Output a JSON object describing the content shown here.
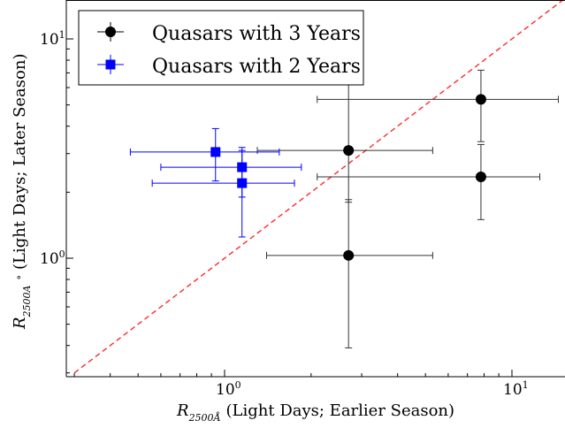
{
  "chart_data": {
    "type": "scatter",
    "xscale": "log",
    "yscale": "log",
    "xlim": [
      0.3,
      15
    ],
    "ylim": [
      0.3,
      15
    ],
    "grid": false,
    "legend_position": "top-left",
    "xlabel": {
      "symbol": "R",
      "subscript": "2500",
      "subscript_unit": "Å",
      "text": "(Light Days; Earlier Season)"
    },
    "ylabel": {
      "symbol": "R",
      "subscript": "2500",
      "subscript_unit": "A",
      "text": "(Light Days; Later Season)"
    },
    "x_ticks": [
      {
        "value": 1,
        "base": "10",
        "exp": "0"
      },
      {
        "value": 10,
        "base": "10",
        "exp": "1"
      }
    ],
    "y_ticks": [
      {
        "value": 1,
        "base": "10",
        "exp": "0"
      },
      {
        "value": 10,
        "base": "10",
        "exp": "1"
      }
    ],
    "reference_line": {
      "kind": "one-to-one",
      "color": "#ff2a2a",
      "style": "dashed"
    },
    "series": [
      {
        "name": "Quasars with 3 Years",
        "color": "#000000",
        "marker": "circle",
        "points": [
          {
            "x": 2.7,
            "y": 1.03,
            "xerr": [
              1.4,
              5.3
            ],
            "yerr": [
              0.39,
              1.85
            ]
          },
          {
            "x": 2.7,
            "y": 3.1,
            "xerr": [
              1.3,
              5.3
            ],
            "yerr": [
              1.8,
              6.2
            ]
          },
          {
            "x": 7.8,
            "y": 5.3,
            "xerr": [
              2.1,
              14.5
            ],
            "yerr": [
              3.4,
              7.2
            ]
          },
          {
            "x": 7.8,
            "y": 2.35,
            "xerr": [
              2.1,
              12.5
            ],
            "yerr": [
              1.5,
              3.3
            ]
          }
        ]
      },
      {
        "name": "Quasars with 2 Years",
        "color": "#0000ff",
        "marker": "square",
        "points": [
          {
            "x": 0.93,
            "y": 3.05,
            "xerr": [
              0.47,
              1.55
            ],
            "yerr": [
              2.25,
              3.9
            ]
          },
          {
            "x": 1.15,
            "y": 2.6,
            "xerr": [
              0.6,
              1.85
            ],
            "yerr": [
              1.9,
              3.2
            ]
          },
          {
            "x": 1.15,
            "y": 2.2,
            "xerr": [
              0.56,
              1.75
            ],
            "yerr": [
              1.25,
              3.1
            ]
          }
        ]
      }
    ]
  }
}
